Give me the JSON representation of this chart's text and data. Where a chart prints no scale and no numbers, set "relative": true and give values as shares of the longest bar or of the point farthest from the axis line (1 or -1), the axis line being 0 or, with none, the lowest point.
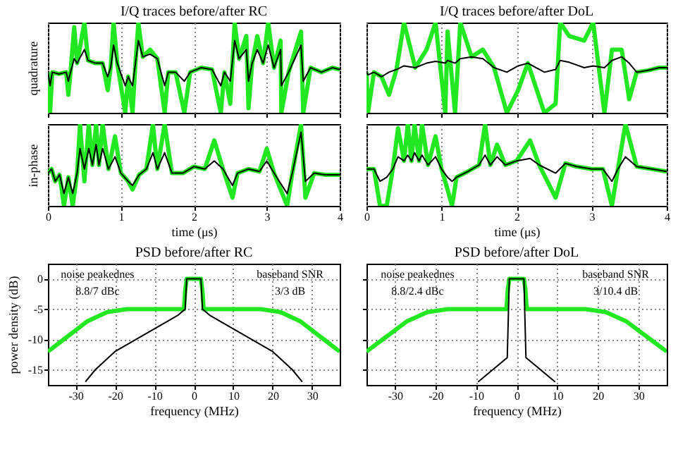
{
  "chart_data": [
    {
      "type": "line",
      "title": "I/Q traces before/after RC",
      "ylabel": "quadrature",
      "relative": true,
      "xlim": [
        0,
        4
      ],
      "xticks": [
        0,
        1,
        2,
        3,
        4
      ],
      "tick_labels": false,
      "grid": "x",
      "x": [
        0,
        0.03,
        0.06,
        0.15,
        0.25,
        0.28,
        0.31,
        0.36,
        0.4,
        0.5,
        0.55,
        0.65,
        0.75,
        0.82,
        0.86,
        0.9,
        0.95,
        1.06,
        1.1,
        1.16,
        1.2,
        1.24,
        1.3,
        1.4,
        1.5,
        1.6,
        1.65,
        1.75,
        1.87,
        1.95,
        2.1,
        2.25,
        2.37,
        2.42,
        2.5,
        2.56,
        2.62,
        2.72,
        2.75,
        2.8,
        2.87,
        2.95,
        3.02,
        3.1,
        3.19,
        3.2,
        3.3,
        3.47,
        3.5,
        3.6,
        3.75,
        3.9,
        4.0
      ],
      "series": [
        {
          "color": "#22e822",
          "values": [
            0.45,
            0,
            0.45,
            0.43,
            0.45,
            0.2,
            0.45,
            0.95,
            0.55,
            1,
            0.58,
            0.55,
            0.55,
            0.25,
            0.5,
            1,
            0.55,
            0,
            0.4,
            0,
            0.55,
            1,
            0.62,
            0.7,
            0.6,
            0,
            0.45,
            0.45,
            0,
            0.45,
            0.5,
            0.48,
            0,
            0.45,
            0.1,
            1,
            0.6,
            0.85,
            0.05,
            0.55,
            0.85,
            0.55,
            1,
            0.5,
            0.8,
            0,
            0.45,
            0.9,
            0,
            0.5,
            0.45,
            0.5,
            0.48
          ]
        },
        {
          "color": "#000000",
          "values": [
            0.45,
            0.3,
            0.45,
            0.43,
            0.45,
            0.35,
            0.45,
            0.6,
            0.55,
            0.7,
            0.58,
            0.55,
            0.55,
            0.4,
            0.5,
            0.75,
            0.55,
            0.3,
            0.4,
            0.3,
            0.55,
            0.8,
            0.62,
            0.65,
            0.6,
            0.3,
            0.45,
            0.45,
            0.35,
            0.45,
            0.5,
            0.48,
            0.3,
            0.45,
            0.35,
            0.8,
            0.6,
            0.7,
            0.35,
            0.55,
            0.7,
            0.55,
            0.75,
            0.5,
            0.7,
            0.3,
            0.45,
            0.75,
            0.35,
            0.5,
            0.45,
            0.5,
            0.48
          ]
        }
      ]
    },
    {
      "type": "line",
      "title": "I/Q traces before/after DoL",
      "relative": true,
      "xlim": [
        0,
        4
      ],
      "xticks": [
        0,
        1,
        2,
        3,
        4
      ],
      "tick_labels": false,
      "grid": "x",
      "x": [
        0,
        0.02,
        0.1,
        0.2,
        0.3,
        0.4,
        0.5,
        0.65,
        0.8,
        0.92,
        1.05,
        1.08,
        1.18,
        1.25,
        1.4,
        1.55,
        1.7,
        1.87,
        2.02,
        2.15,
        2.37,
        2.52,
        2.58,
        2.7,
        2.9,
        3.02,
        3.17,
        3.27,
        3.4,
        3.5,
        3.6,
        3.75,
        3.9,
        4.0
      ],
      "series": [
        {
          "color": "#22e822",
          "values": [
            0.45,
            0,
            0.45,
            0.4,
            0.2,
            0.48,
            1,
            0.5,
            0.7,
            1,
            0,
            0.9,
            0,
            1,
            0.62,
            0.7,
            0.5,
            0,
            0.25,
            0.55,
            0,
            0.1,
            1,
            0.85,
            0.8,
            1,
            0,
            0.7,
            0.7,
            0.15,
            0.45,
            0.47,
            0.5,
            0.5
          ]
        },
        {
          "color": "#000000",
          "values": [
            0.45,
            0.42,
            0.45,
            0.4,
            0.45,
            0.48,
            0.52,
            0.5,
            0.55,
            0.57,
            0.55,
            0.58,
            0.55,
            0.6,
            0.62,
            0.6,
            0.5,
            0.45,
            0.52,
            0.55,
            0.45,
            0.48,
            0.58,
            0.56,
            0.5,
            0.52,
            0.5,
            0.58,
            0.62,
            0.55,
            0.45,
            0.47,
            0.5,
            0.5
          ]
        }
      ]
    },
    {
      "type": "line",
      "xlabel": "time (μs)",
      "ylabel": "in-phase",
      "relative": true,
      "xlim": [
        0,
        4
      ],
      "xticks": [
        0,
        1,
        2,
        3,
        4
      ],
      "tick_labels": "x",
      "grid": "x",
      "x": [
        0,
        0.05,
        0.1,
        0.16,
        0.22,
        0.28,
        0.34,
        0.4,
        0.44,
        0.5,
        0.56,
        0.61,
        0.66,
        0.7,
        0.75,
        0.83,
        0.92,
        1.0,
        1.1,
        1.16,
        1.25,
        1.35,
        1.44,
        1.5,
        1.6,
        1.7,
        1.85,
        2.0,
        2.15,
        2.28,
        2.4,
        2.53,
        2.6,
        2.75,
        2.9,
        3.0,
        3.1,
        3.28,
        3.35,
        3.47,
        3.53,
        3.65,
        3.8,
        4.0
      ],
      "series": [
        {
          "color": "#22e822",
          "values": [
            0.4,
            0.45,
            0.3,
            0.38,
            0,
            0.35,
            0,
            0.4,
            1,
            0.3,
            1,
            0.5,
            1,
            0.5,
            1,
            0.45,
            0.85,
            0.4,
            0.3,
            0.2,
            0.38,
            0.45,
            1,
            0.45,
            1,
            0.4,
            0.4,
            0.48,
            0.45,
            0.8,
            0.45,
            0.1,
            0.4,
            0.45,
            0.42,
            0.7,
            0.4,
            0,
            0.4,
            1,
            0.1,
            0.4,
            0.38,
            0.38
          ]
        },
        {
          "color": "#000000",
          "values": [
            0.4,
            0.45,
            0.3,
            0.38,
            0.15,
            0.35,
            0.15,
            0.4,
            0.7,
            0.45,
            0.7,
            0.5,
            0.75,
            0.5,
            0.7,
            0.45,
            0.6,
            0.4,
            0.3,
            0.25,
            0.38,
            0.45,
            0.65,
            0.45,
            0.65,
            0.4,
            0.4,
            0.48,
            0.45,
            0.55,
            0.45,
            0.25,
            0.4,
            0.45,
            0.42,
            0.55,
            0.4,
            0.15,
            0.4,
            0.9,
            0.3,
            0.4,
            0.38,
            0.38
          ]
        }
      ]
    },
    {
      "type": "line",
      "xlabel": "time (μs)",
      "relative": true,
      "xlim": [
        0,
        4
      ],
      "xticks": [
        0,
        1,
        2,
        3,
        4
      ],
      "tick_labels": "x",
      "grid": "x",
      "x": [
        0,
        0.1,
        0.18,
        0.27,
        0.35,
        0.42,
        0.5,
        0.55,
        0.6,
        0.64,
        0.7,
        0.74,
        0.82,
        0.92,
        1.0,
        1.08,
        1.14,
        1.2,
        1.35,
        1.5,
        1.58,
        1.65,
        1.74,
        1.85,
        2.0,
        2.18,
        2.3,
        2.52,
        2.65,
        2.8,
        3.0,
        3.15,
        3.27,
        3.35,
        3.45,
        3.6,
        3.8,
        4.0
      ],
      "series": [
        {
          "color": "#22e822",
          "values": [
            0.45,
            0.45,
            0,
            0,
            0.45,
            0.95,
            0.55,
            1,
            0.55,
            1,
            0.55,
            1,
            0.5,
            0.85,
            0.45,
            0.2,
            0,
            0.35,
            0.42,
            0.5,
            1,
            0.5,
            0.75,
            0.5,
            0.55,
            0.8,
            0.5,
            0.1,
            0.52,
            0.48,
            0.45,
            0.45,
            0,
            0.45,
            1,
            0.48,
            0.45,
            0.42
          ]
        },
        {
          "color": "#000000",
          "values": [
            0.45,
            0.45,
            0.3,
            0.35,
            0.45,
            0.6,
            0.55,
            0.62,
            0.55,
            0.65,
            0.55,
            0.62,
            0.5,
            0.6,
            0.45,
            0.35,
            0.3,
            0.35,
            0.42,
            0.5,
            0.62,
            0.5,
            0.6,
            0.5,
            0.55,
            0.58,
            0.5,
            0.4,
            0.52,
            0.48,
            0.45,
            0.45,
            0.3,
            0.45,
            0.6,
            0.48,
            0.45,
            0.42
          ]
        }
      ]
    },
    {
      "type": "line",
      "title": "PSD before/after RC",
      "xlabel": "frequency (MHz)",
      "ylabel": "power density (dB)",
      "xlim": [
        -37,
        37
      ],
      "xticks": [
        -30,
        -20,
        -10,
        0,
        10,
        20,
        30
      ],
      "ylim": [
        -17.5,
        2.5
      ],
      "yticks": [
        -15,
        -10,
        -5,
        0
      ],
      "grid": true,
      "annotations": [
        "noise peakednes",
        "8.8/7 dBc",
        "baseband SNR",
        "3/3 dB"
      ],
      "series": [
        {
          "color": "#22e822",
          "x": [
            -37,
            -33,
            -30,
            -27,
            -22,
            -17,
            -10,
            -2.5,
            -2.2,
            -1.8,
            0,
            1.8,
            2.2,
            2.5,
            10,
            17,
            22,
            27,
            30,
            33,
            37
          ],
          "values": [
            -12,
            -10,
            -8.5,
            -7,
            -5.5,
            -5,
            -5,
            -5,
            -2,
            0,
            0,
            0,
            -2,
            -5,
            -5,
            -5,
            -5.5,
            -7,
            -8.5,
            -10,
            -12
          ]
        },
        {
          "color": "#000000",
          "x": [
            -27.5,
            -25,
            -20,
            -12,
            -4,
            -2.2,
            -1.8,
            0,
            1.8,
            2.2,
            4,
            12,
            20,
            25,
            27.5
          ],
          "values": [
            -17,
            -15,
            -12,
            -9,
            -6,
            -5,
            0,
            0,
            0,
            -5,
            -6,
            -9,
            -12,
            -15,
            -17
          ]
        }
      ]
    },
    {
      "type": "line",
      "title": "PSD before/after DoL",
      "xlabel": "frequency (MHz)",
      "xlim": [
        -37,
        37
      ],
      "xticks": [
        -30,
        -20,
        -10,
        0,
        10,
        20,
        30
      ],
      "ylim": [
        -17.5,
        2.5
      ],
      "yticks": [
        -15,
        -10,
        -5,
        0
      ],
      "grid": true,
      "tick_labels": "x",
      "annotations": [
        "noise peakednes",
        "8.8/2.4 dBc",
        "baseband SNR",
        "3/10.4 dB"
      ],
      "series": [
        {
          "color": "#22e822",
          "x": [
            -37,
            -33,
            -30,
            -27,
            -22,
            -17,
            -10,
            -2.5,
            -2.2,
            -1.8,
            0,
            1.8,
            2.2,
            2.5,
            10,
            17,
            22,
            27,
            30,
            33,
            37
          ],
          "values": [
            -12,
            -10,
            -8.5,
            -7,
            -5.5,
            -5,
            -5,
            -5,
            -2,
            0,
            0,
            0,
            -2,
            -5,
            -5,
            -5,
            -5.5,
            -7,
            -8.5,
            -10,
            -12
          ]
        },
        {
          "color": "#000000",
          "x": [
            -9.5,
            -2.3,
            -1.8,
            0,
            1.8,
            2.3,
            9.5
          ],
          "values": [
            -17,
            -13,
            0,
            0,
            0,
            -13,
            -17
          ]
        }
      ]
    }
  ]
}
